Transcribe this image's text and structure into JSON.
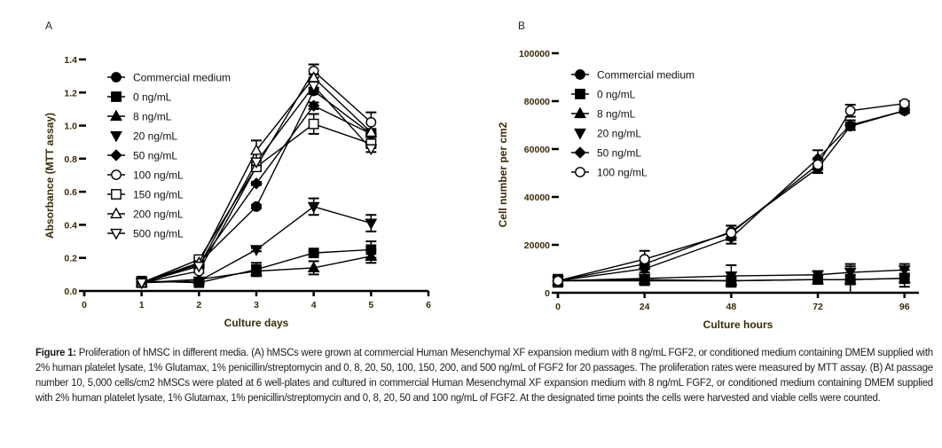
{
  "chart_data": [
    {
      "id": "A",
      "type": "line",
      "panel_label": "A",
      "title": "",
      "xlabel": "Culture days",
      "ylabel": "Absorbance (MTT assay)",
      "xlim": [
        0,
        6
      ],
      "ylim": [
        0,
        1.4
      ],
      "xticks": [
        "0",
        "1",
        "2",
        "3",
        "4",
        "5",
        "6"
      ],
      "yticks": [
        "0.0",
        "0.2",
        "0.4",
        "0.6",
        "0.8",
        "1.0",
        "1.2",
        "1.4"
      ],
      "ytick_values": [
        0,
        0.2,
        0.4,
        0.6,
        0.8,
        1.0,
        1.2,
        1.4
      ],
      "xtick_values": [
        0,
        1,
        2,
        3,
        4,
        5,
        6
      ],
      "grid": false,
      "legend_position": "top-left",
      "x": [
        1,
        2,
        3,
        4,
        5
      ],
      "series": [
        {
          "name": "Commercial medium",
          "marker": "circle-filled",
          "values": [
            0.05,
            0.17,
            0.51,
            1.21,
            0.95
          ],
          "errors": [
            0.01,
            0.01,
            0.01,
            0.02,
            0.02
          ]
        },
        {
          "name": "0 ng/mL",
          "marker": "square-filled",
          "values": [
            0.06,
            0.05,
            0.13,
            0.23,
            0.25
          ],
          "errors": [
            0.02,
            0.01,
            0.04,
            0.01,
            0.05
          ]
        },
        {
          "name": "8 ng/mL",
          "marker": "triangle-up-filled",
          "values": [
            0.05,
            0.07,
            0.12,
            0.14,
            0.21
          ],
          "errors": [
            0.01,
            0.01,
            0.03,
            0.04,
            0.04
          ]
        },
        {
          "name": "20 ng/mL",
          "marker": "triangle-down-filled",
          "values": [
            0.05,
            0.06,
            0.25,
            0.51,
            0.41
          ],
          "errors": [
            0.01,
            0.01,
            0.01,
            0.05,
            0.05
          ]
        },
        {
          "name": "50 ng/mL",
          "marker": "diamond-filled",
          "values": [
            0.05,
            0.16,
            0.65,
            1.12,
            0.95
          ],
          "errors": [
            0.01,
            0.01,
            0.01,
            0.02,
            0.02
          ]
        },
        {
          "name": "100 ng/mL",
          "marker": "circle-open",
          "values": [
            0.05,
            0.12,
            0.75,
            1.33,
            1.02
          ],
          "errors": [
            0.01,
            0.01,
            0.02,
            0.04,
            0.06
          ]
        },
        {
          "name": "150 ng/mL",
          "marker": "square-open",
          "values": [
            0.05,
            0.19,
            0.75,
            1.01,
            0.89
          ],
          "errors": [
            0.01,
            0.01,
            0.02,
            0.06,
            0.02
          ]
        },
        {
          "name": "200 ng/mL",
          "marker": "triangle-up-open",
          "values": [
            0.05,
            0.17,
            0.85,
            1.29,
            0.96
          ],
          "errors": [
            0.01,
            0.01,
            0.06,
            0.02,
            0.02
          ]
        },
        {
          "name": "500 ng/mL",
          "marker": "triangle-down-open",
          "values": [
            0.05,
            0.15,
            0.78,
            1.24,
            0.86
          ],
          "errors": [
            0.01,
            0.01,
            0.02,
            0.02,
            0.02
          ]
        }
      ]
    },
    {
      "id": "B",
      "type": "line",
      "panel_label": "B",
      "title": "",
      "xlabel": "Culture hours",
      "ylabel": "Cell number per cm2",
      "xlim": [
        0,
        100
      ],
      "ylim": [
        0,
        100000
      ],
      "xticks": [
        "0",
        "24",
        "48",
        "72",
        "96"
      ],
      "xtick_values": [
        0,
        24,
        48,
        72,
        96
      ],
      "yticks": [
        "0",
        "20000",
        "40000",
        "60000",
        "80000",
        "100000"
      ],
      "ytick_values": [
        0,
        20000,
        40000,
        60000,
        80000,
        100000
      ],
      "grid": false,
      "legend_position": "top-left",
      "x": [
        0,
        24,
        48,
        72,
        81,
        96
      ],
      "series": [
        {
          "name": "Commercial medium",
          "marker": "circle-filled",
          "values": [
            5000,
            12000,
            25500,
            52000,
            69500,
            76000
          ],
          "errors": [
            1000,
            1500,
            2500,
            2000,
            1500,
            1000
          ]
        },
        {
          "name": "0 ng/mL",
          "marker": "square-filled",
          "values": [
            5000,
            5000,
            5000,
            5500,
            5500,
            6000
          ],
          "errors": [
            2500,
            1500,
            1000,
            1500,
            2000,
            2000
          ]
        },
        {
          "name": "8 ng/mL",
          "marker": "triangle-up-filled",
          "values": [
            5000,
            5500,
            5000,
            5500,
            5500,
            6000
          ],
          "errors": [
            1000,
            1000,
            2000,
            1500,
            5500,
            3500
          ]
        },
        {
          "name": "20 ng/mL",
          "marker": "triangle-down-filled",
          "values": [
            5000,
            6000,
            7000,
            7500,
            8500,
            9500
          ],
          "errors": [
            1000,
            1000,
            4500,
            1500,
            3500,
            2500
          ]
        },
        {
          "name": "50 ng/mL",
          "marker": "diamond-filled",
          "values": [
            5000,
            10000,
            23000,
            56000,
            70000,
            76000
          ],
          "errors": [
            1000,
            1500,
            2500,
            3500,
            2000,
            1000
          ]
        },
        {
          "name": "100 ng/mL",
          "marker": "circle-open",
          "values": [
            5000,
            14000,
            25000,
            53500,
            76000,
            79000
          ],
          "errors": [
            1000,
            3500,
            3000,
            2000,
            2500,
            1000
          ]
        }
      ]
    }
  ],
  "caption": {
    "label": "Figure 1:",
    "text": " Proliferation of hMSC in different media. (A) hMSCs were grown at commercial Human Mesenchymal XF expansion medium with 8 ng/mL FGF2, or conditioned medium containing DMEM supplied with 2% human platelet lysate, 1% Glutamax, 1% penicillin/streptomycin and 0, 8, 20, 50, 100, 150, 200, and 500 ng/mL of FGF2 for 20 passages. The proliferation rates were measured by MTT assay. (B) At passage number 10, 5,000 cells/cm2 hMSCs were plated at 6 well-plates and cultured in commercial Human Mesenchymal XF expansion medium with 8 ng/mL FGF2, or conditioned medium containing DMEM supplied with 2% human platelet lysate, 1% Glutamax, 1% penicillin/streptomycin and 0, 8, 20, 50 and 100 ng/mL of FGF2. At the designated time points the cells were harvested and viable cells were counted."
  }
}
